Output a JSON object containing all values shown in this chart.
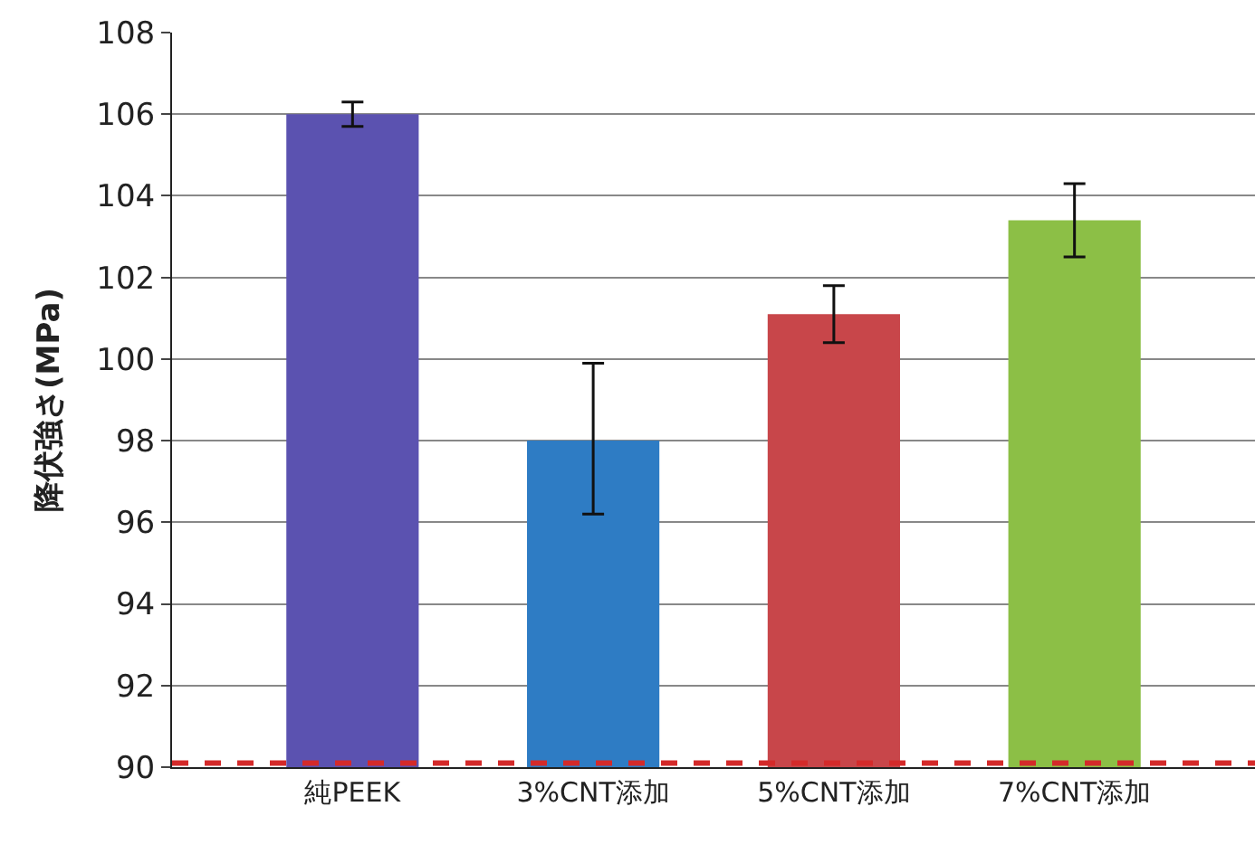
{
  "chart_data": {
    "type": "bar",
    "ylabel": "降伏強さ(MPa)",
    "categories": [
      "純PEEK",
      "3%CNT添加",
      "5%CNT添加",
      "7%CNT添加"
    ],
    "values": [
      106.0,
      98.0,
      101.1,
      103.4
    ],
    "colors": [
      "#5b52b0",
      "#2e7cc4",
      "#c8464a",
      "#8cbf46"
    ],
    "errors": [
      0.3,
      [
        96.2,
        99.9
      ],
      0.7,
      0.9
    ],
    "ylim": [
      90,
      108
    ],
    "yticks": [
      90,
      92,
      94,
      96,
      98,
      100,
      102,
      104,
      106,
      108
    ],
    "grid": "y",
    "ref_lines": [
      {
        "axis": "y",
        "value": 90.1,
        "color": "#d42a2a",
        "line_style": "dashed"
      }
    ]
  }
}
